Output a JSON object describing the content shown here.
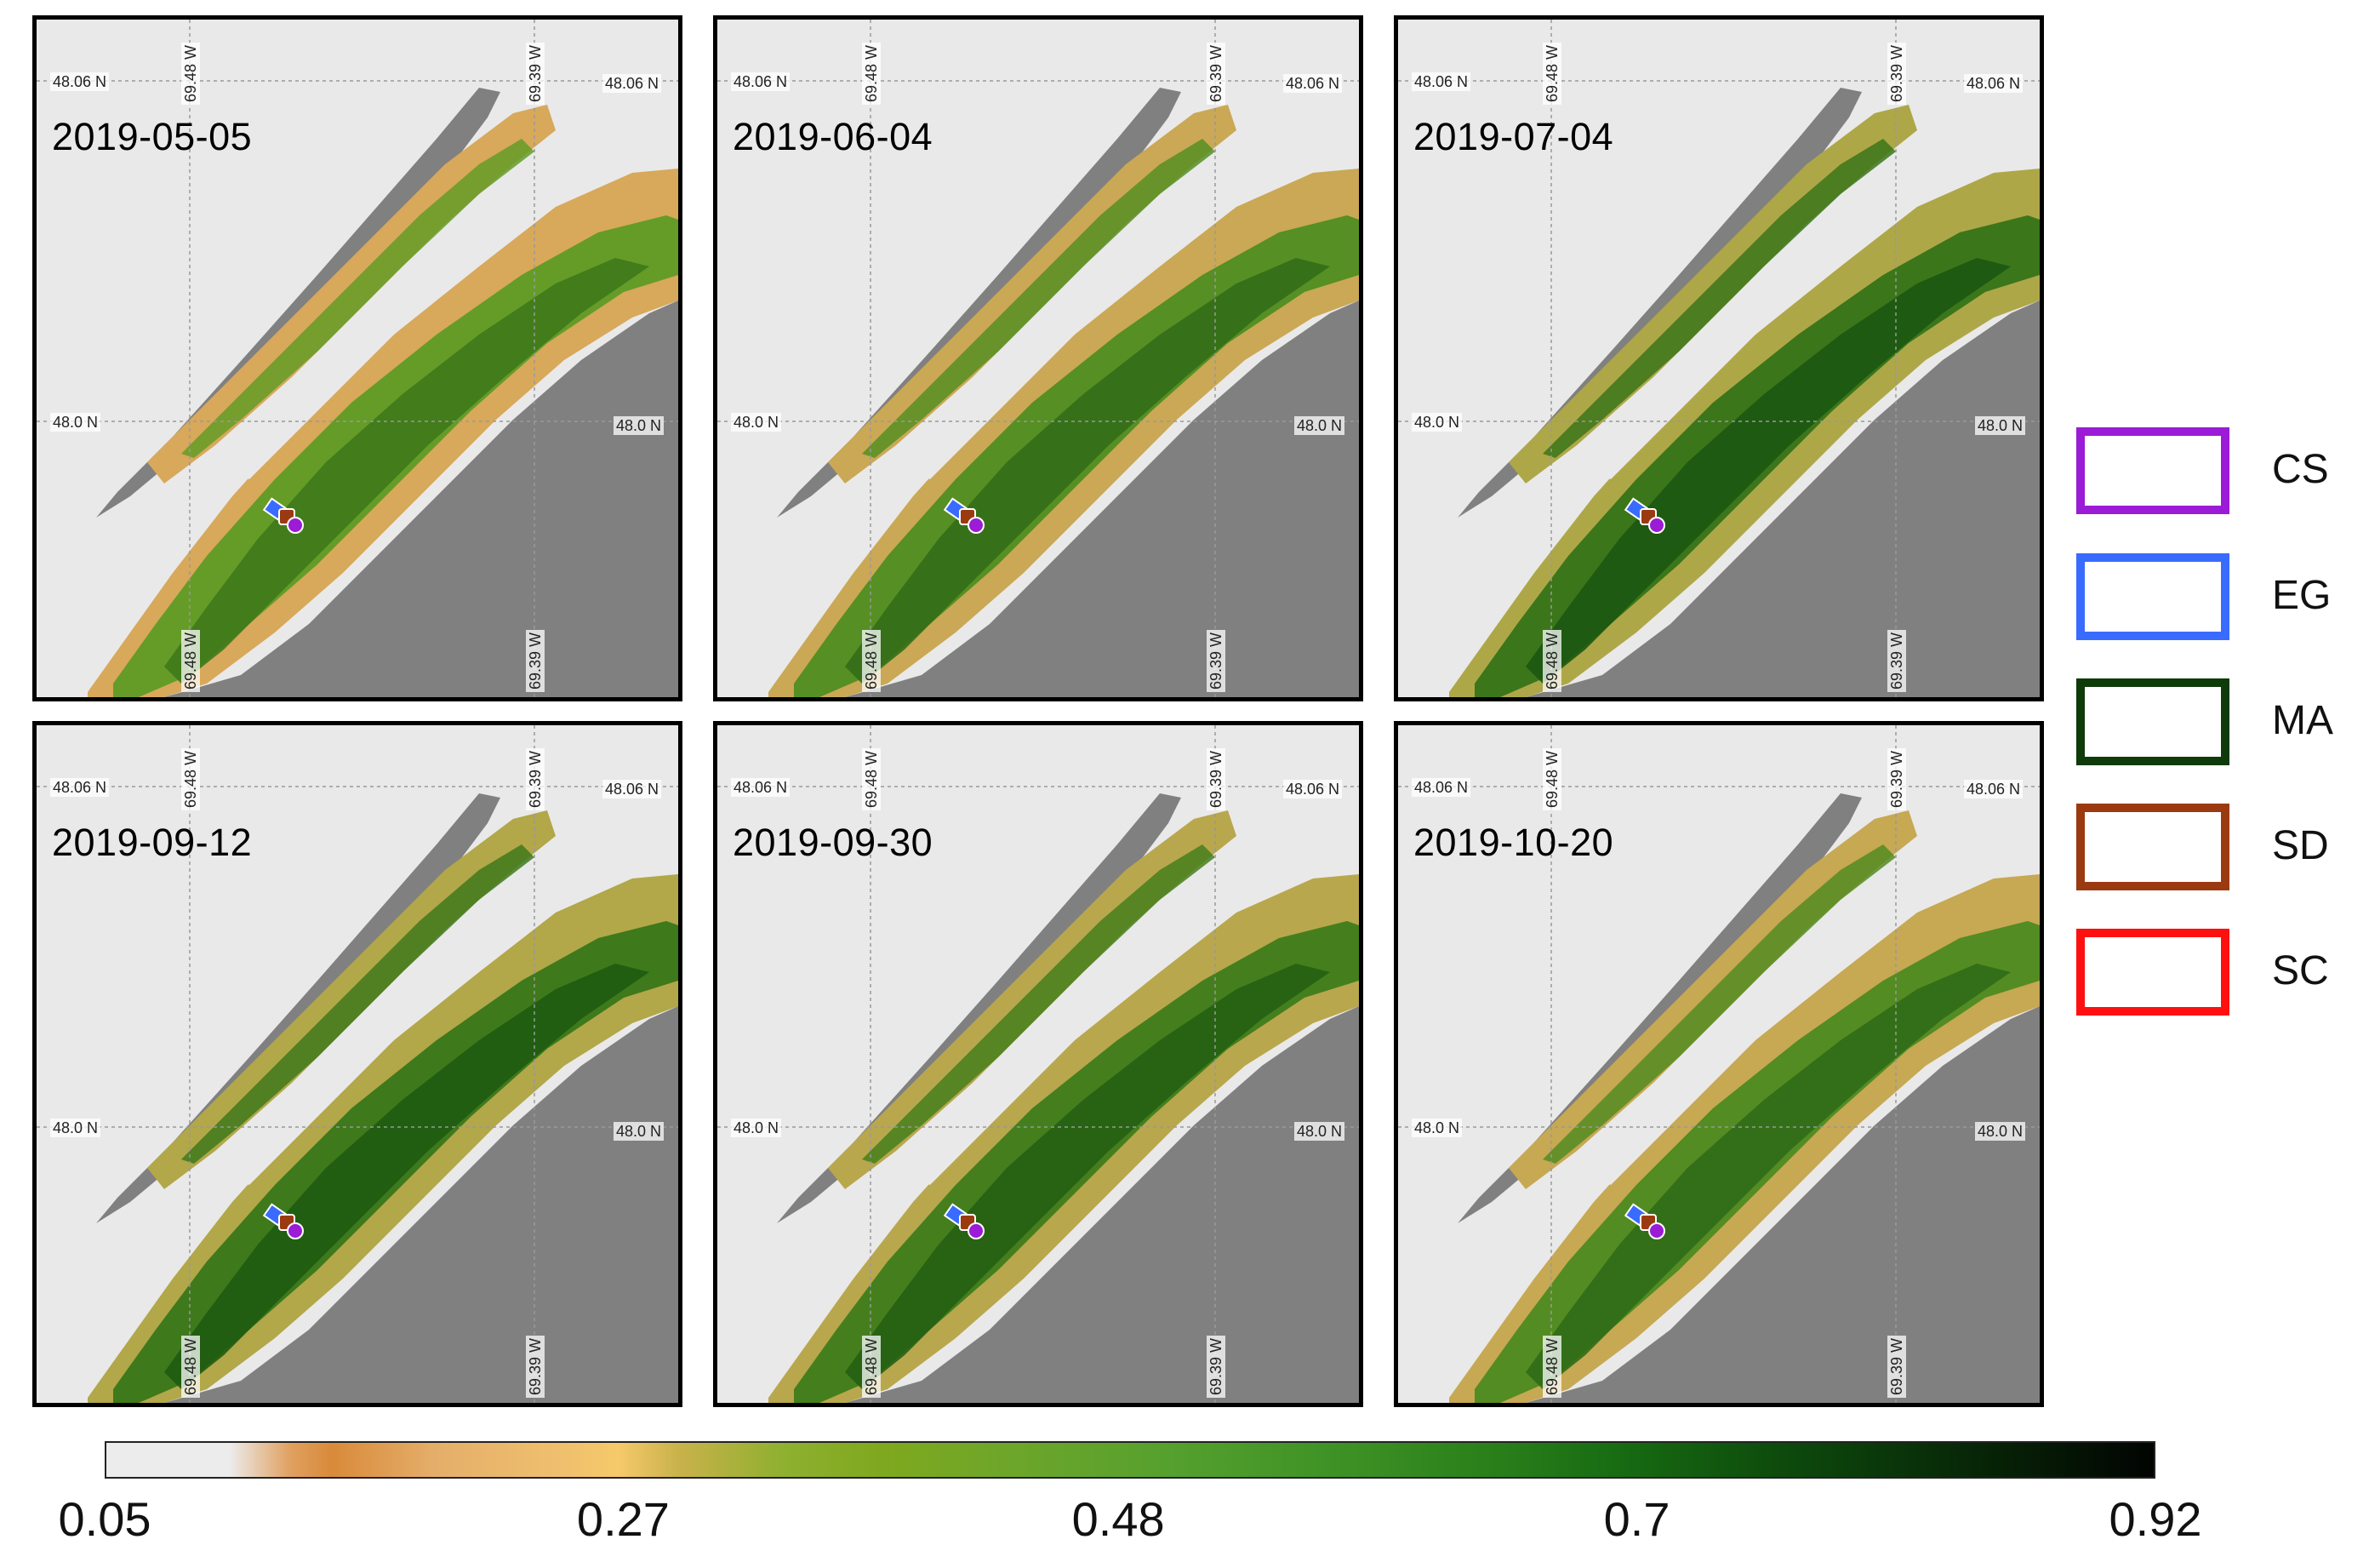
{
  "panels": [
    {
      "date": "2019-05-05"
    },
    {
      "date": "2019-06-04"
    },
    {
      "date": "2019-07-04"
    },
    {
      "date": "2019-09-12"
    },
    {
      "date": "2019-09-30"
    },
    {
      "date": "2019-10-20"
    }
  ],
  "graticule": {
    "lat_top": "48.06 N",
    "lat_mid": "48.0 N",
    "lon_left": "69.48 W",
    "lon_right": "69.39 W"
  },
  "legend": [
    {
      "label": "CS",
      "color": "#9b1bd6"
    },
    {
      "label": "EG",
      "color": "#3a6bff"
    },
    {
      "label": "MA",
      "color": "#0f3a0a"
    },
    {
      "label": "SD",
      "color": "#9b3a10"
    },
    {
      "label": "SC",
      "color": "#ff1010"
    }
  ],
  "colorbar": {
    "ticks": [
      "0.05",
      "0.27",
      "0.48",
      "0.7",
      "0.92"
    ],
    "min": 0.05,
    "max": 0.92
  },
  "colors": {
    "water": "#e9e9e9",
    "land": "#808080",
    "marsh_light": "#e3a860",
    "marsh_mid": "#6ea62a",
    "marsh_dark": "#0d4a0c"
  }
}
